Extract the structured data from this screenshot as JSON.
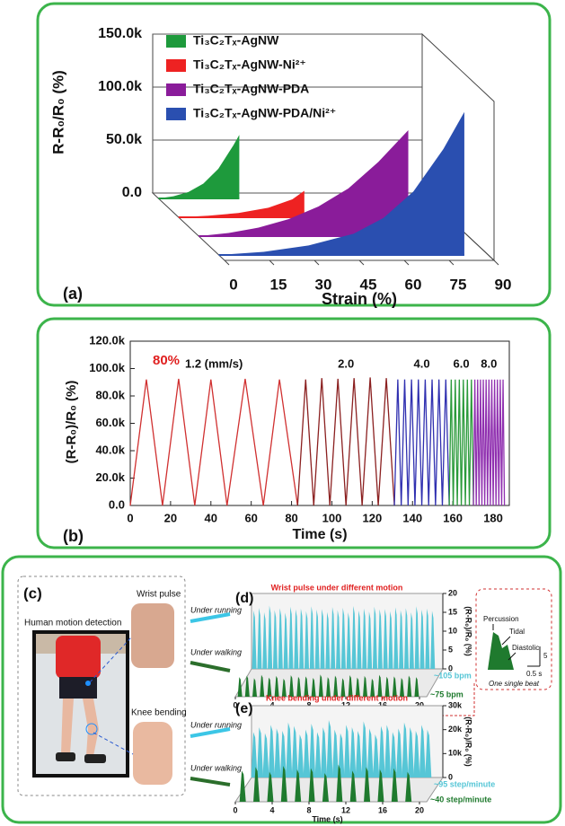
{
  "chart_data": [
    {
      "type": "waterfall3d",
      "panel_label": "(a)",
      "ylabel": "R-R₀/R₀ (%)",
      "xlabel": "Strain (%)",
      "xlim": [
        0,
        90
      ],
      "xticks": [
        0,
        15,
        30,
        45,
        60,
        75,
        90
      ],
      "ylim": [
        0,
        150000
      ],
      "yticks": [
        {
          "value": 0,
          "label": "0.0"
        },
        {
          "value": 50000,
          "label": "50.0k"
        },
        {
          "value": 100000,
          "label": "100.0k"
        },
        {
          "value": 150000,
          "label": "150.0k"
        }
      ],
      "series": [
        {
          "name": "Ti₃C₂Tₓ-AgNW",
          "color": "#1e9a3c",
          "x": [
            0,
            5,
            10,
            15,
            20,
            25,
            27
          ],
          "values": [
            0,
            2000,
            6000,
            14000,
            28000,
            50000,
            60000
          ]
        },
        {
          "name": "Ti₃C₂Tₓ-AgNW-Ni²⁺",
          "color": "#ee2222",
          "x": [
            0,
            10,
            20,
            30,
            38,
            42
          ],
          "values": [
            0,
            1500,
            4000,
            9000,
            17000,
            25000
          ]
        },
        {
          "name": "Ti₃C₂Tₓ-AgNW-PDA",
          "color": "#8a1c9a",
          "x": [
            0,
            10,
            20,
            30,
            40,
            50,
            60,
            70
          ],
          "values": [
            0,
            3000,
            8000,
            16000,
            28000,
            45000,
            70000,
            100000
          ]
        },
        {
          "name": "Ti₃C₂Tₓ-AgNW-PDA/Ni²⁺",
          "color": "#2a4fb0",
          "x": [
            0,
            15,
            30,
            45,
            55,
            65,
            75,
            82
          ],
          "values": [
            0,
            3000,
            9000,
            20000,
            35000,
            60000,
            100000,
            135000
          ]
        }
      ]
    },
    {
      "type": "line",
      "panel_label": "(b)",
      "annotation": "80%",
      "ylabel": "(R-R₀)/R₀ (%)",
      "xlabel": "Time (s)",
      "xlim": [
        0,
        188
      ],
      "xticks": [
        0,
        20,
        40,
        60,
        80,
        100,
        120,
        140,
        160,
        180
      ],
      "ylim": [
        0,
        120000
      ],
      "yticks": [
        {
          "value": 0,
          "label": "0.0"
        },
        {
          "value": 20000,
          "label": "20.0k"
        },
        {
          "value": 40000,
          "label": "40.0k"
        },
        {
          "value": 60000,
          "label": "60.0k"
        },
        {
          "value": 80000,
          "label": "80.0k"
        },
        {
          "value": 100000,
          "label": "100.0k"
        },
        {
          "value": 120000,
          "label": "120.0k"
        }
      ],
      "series": [
        {
          "name": "1.2 (mm/s)",
          "color": "#d03030",
          "x": [
            0,
            8,
            16,
            24,
            32,
            40,
            48,
            57,
            66,
            74,
            83
          ],
          "values": [
            0,
            92000,
            0,
            92500,
            0,
            92000,
            0,
            92500,
            0,
            92000,
            0
          ]
        },
        {
          "name": "2.0",
          "color": "#8b2020",
          "x": [
            83,
            87,
            91,
            95,
            99,
            103,
            107,
            111,
            115,
            119,
            123,
            127,
            131
          ],
          "values": [
            0,
            92000,
            0,
            93000,
            0,
            92500,
            0,
            93000,
            0,
            93500,
            0,
            93000,
            0
          ]
        },
        {
          "name": "4.0",
          "color": "#3030b0",
          "x": [
            131,
            132.7,
            134.4,
            136.1,
            137.8,
            139.5,
            141.2,
            142.9,
            144.6,
            146.3,
            148,
            149.7,
            151.4,
            153.1,
            154.8,
            156.5,
            158.2
          ],
          "values": [
            0,
            92000,
            0,
            92000,
            0,
            92000,
            0,
            92000,
            0,
            92000,
            0,
            92000,
            0,
            92000,
            0,
            92000,
            0
          ]
        },
        {
          "name": "6.0",
          "color": "#2a9a3a",
          "x": [
            158.2,
            159.2,
            160.2,
            161.2,
            162.2,
            163.2,
            164.2,
            165.2,
            166.2,
            167.2,
            168.2,
            169.2,
            170.2
          ],
          "values": [
            0,
            92000,
            0,
            92000,
            0,
            92000,
            0,
            92000,
            0,
            92000,
            0,
            92000,
            0
          ]
        },
        {
          "name": "8.0",
          "color": "#9030b0",
          "x": [
            170.2,
            170.9,
            171.6,
            172.3,
            173,
            173.7,
            174.4,
            175.1,
            175.8,
            176.5,
            177.2,
            177.9,
            178.6,
            179.3,
            180,
            180.7,
            181.4,
            182.1,
            182.8,
            183.5,
            184.2,
            184.9,
            185.6
          ],
          "values": [
            0,
            92000,
            0,
            92000,
            0,
            92000,
            0,
            92000,
            0,
            92000,
            0,
            92000,
            0,
            92000,
            0,
            92000,
            0,
            92000,
            0,
            92000,
            0,
            92000,
            0
          ]
        }
      ]
    },
    {
      "type": "pulse",
      "panel_label": "(d)",
      "title": "Wrist pulse under different motion",
      "ylabel": "(R-R₀)/R₀ (%)",
      "xlim": [
        0,
        20
      ],
      "xticks": [
        0,
        4,
        8,
        12,
        16,
        20
      ],
      "ylim": [
        0,
        20
      ],
      "yticks": [
        0,
        5,
        10,
        15,
        20
      ],
      "series": [
        {
          "name": "~105 bpm",
          "color": "#56c6d6",
          "x": [
            0.3,
            0.87,
            1.44,
            2.01,
            2.58,
            3.15,
            3.72,
            4.29,
            4.86,
            5.43,
            6.0,
            6.57,
            7.14,
            7.71,
            8.28,
            8.85,
            9.42,
            9.99,
            10.56,
            11.13,
            11.7,
            12.27,
            12.84,
            13.41,
            13.98,
            14.55,
            15.12,
            15.69,
            16.26,
            16.83,
            17.4,
            17.97,
            18.54,
            19.11,
            19.68
          ],
          "values": [
            15.5,
            16.2,
            15.0,
            16.8,
            15.6,
            16.1,
            14.9,
            16.5,
            15.8,
            16.0,
            15.3,
            16.6,
            15.7,
            15.9,
            15.1,
            16.4,
            15.6,
            16.2,
            15.0,
            16.7,
            15.5,
            16.0,
            15.2,
            16.5,
            15.8,
            15.9,
            15.3,
            16.3,
            15.6,
            16.1,
            15.0,
            16.6,
            15.7,
            16.0,
            15.4
          ]
        },
        {
          "name": "~75 bpm",
          "color": "#1f7a2e",
          "x": [
            0.5,
            1.3,
            2.1,
            2.9,
            3.7,
            4.5,
            5.3,
            6.1,
            6.9,
            7.7,
            8.5,
            9.3,
            10.1,
            10.9,
            11.7,
            12.5,
            13.3,
            14.1,
            14.9,
            15.7,
            16.5,
            17.3,
            18.1,
            18.9,
            19.7
          ],
          "values": [
            5.2,
            5.6,
            4.9,
            5.8,
            5.1,
            5.5,
            4.8,
            5.7,
            5.3,
            5.4,
            5.0,
            5.9,
            5.2,
            5.6,
            4.9,
            5.7,
            5.1,
            5.5,
            4.8,
            5.8,
            5.3,
            5.4,
            5.0,
            5.6,
            5.2
          ]
        }
      ]
    },
    {
      "type": "pulse",
      "panel_label": "(e)",
      "title": "Knee bending under different motion",
      "ylabel": "(R-R₀)/R₀ (%)",
      "xlabel": "Time (s)",
      "xlim": [
        0,
        20
      ],
      "xticks": [
        0,
        4,
        8,
        12,
        16,
        20
      ],
      "ylim": [
        0,
        30000
      ],
      "yticks": [
        0,
        {
          "value": 10000,
          "label": "10k"
        },
        {
          "value": 20000,
          "label": "20k"
        },
        {
          "value": 30000,
          "label": "30k"
        }
      ],
      "series": [
        {
          "name": "~95 step/minute",
          "color": "#56c6d6",
          "x": [
            0.3,
            0.93,
            1.56,
            2.19,
            2.82,
            3.45,
            4.08,
            4.71,
            5.34,
            5.97,
            6.6,
            7.23,
            7.86,
            8.49,
            9.12,
            9.75,
            10.38,
            11.01,
            11.64,
            12.27,
            12.9,
            13.53,
            14.16,
            14.79,
            15.42,
            16.05,
            16.68,
            17.31,
            17.94,
            18.57,
            19.2
          ],
          "values": [
            19000,
            21000,
            18500,
            22000,
            20500,
            19500,
            23000,
            21500,
            18000,
            20000,
            22500,
            19000,
            21000,
            24000,
            20000,
            18500,
            22000,
            21000,
            19500,
            23500,
            20500,
            18000,
            21500,
            22000,
            19000,
            20500,
            23000,
            21000,
            19500,
            22000,
            20000
          ]
        },
        {
          "name": "~40 step/minute",
          "color": "#1f7a2e",
          "x": [
            0.8,
            2.3,
            3.8,
            5.3,
            6.8,
            8.3,
            9.8,
            11.3,
            12.8,
            14.3,
            15.8,
            17.3,
            18.8
          ],
          "values": [
            13000,
            14500,
            12500,
            15000,
            13500,
            14000,
            12000,
            15500,
            13000,
            14500,
            13500,
            14000,
            12500
          ]
        }
      ]
    }
  ],
  "panel_c": {
    "label": "(c)",
    "heading": "Human motion detection",
    "sites": [
      "Wrist pulse",
      "Knee bending"
    ],
    "conditions": [
      "Under running",
      "Under walking"
    ]
  },
  "inset": {
    "phases": [
      "Percussion",
      "Tidal",
      "Diastolic"
    ],
    "scale_y": "5",
    "scale_x": "0.5 s",
    "caption": "One single beat"
  }
}
